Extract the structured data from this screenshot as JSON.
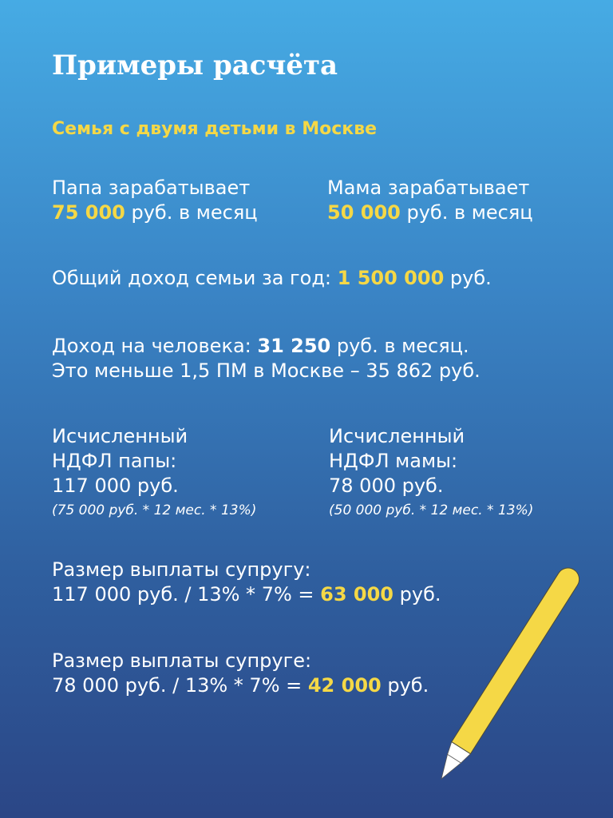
{
  "title": "Примеры расчёта",
  "subtitle": "Семья с двумя детьми в Москве",
  "papa": {
    "line1": "Папа зарабатывает",
    "amount": "75 000",
    "rest": " руб. в месяц"
  },
  "mama": {
    "line1": "Мама зарабатывает",
    "amount": "50 000",
    "rest": " руб. в месяц"
  },
  "total": {
    "prefix": "Общий доход семьи за год: ",
    "amount": "1 500 000",
    "suffix": " руб."
  },
  "per_person": {
    "prefix": "Доход на человека: ",
    "amount": "31 250",
    "suffix": " руб. в месяц.",
    "line2": "Это меньше 1,5 ПМ в Москве – 35 862 руб."
  },
  "ndfl_papa": {
    "line1": "Исчисленный",
    "line2": "НДФЛ папы:",
    "line3": "117 000 руб.",
    "formula": "(75 000 руб. * 12 мес. * 13%)"
  },
  "ndfl_mama": {
    "line1": "Исчисленный",
    "line2": "НДФЛ мамы:",
    "line3": "78 000 руб.",
    "formula": "(50 000 руб. * 12 мес. * 13%)"
  },
  "pay_husband": {
    "line1": "Размер выплаты супругу:",
    "prefix": "117 000 руб. / 13% * 7% = ",
    "amount": "63 000",
    "suffix": " руб."
  },
  "pay_wife": {
    "line1": "Размер выплаты супруге:",
    "prefix": "78 000 руб. / 13% * 7% = ",
    "amount": "42 000",
    "suffix": " руб."
  },
  "colors": {
    "accent": "#f5d846",
    "bg_top": "#46abe4",
    "bg_bottom": "#2b4686"
  },
  "icons": {
    "decoration": "pencil-icon"
  }
}
